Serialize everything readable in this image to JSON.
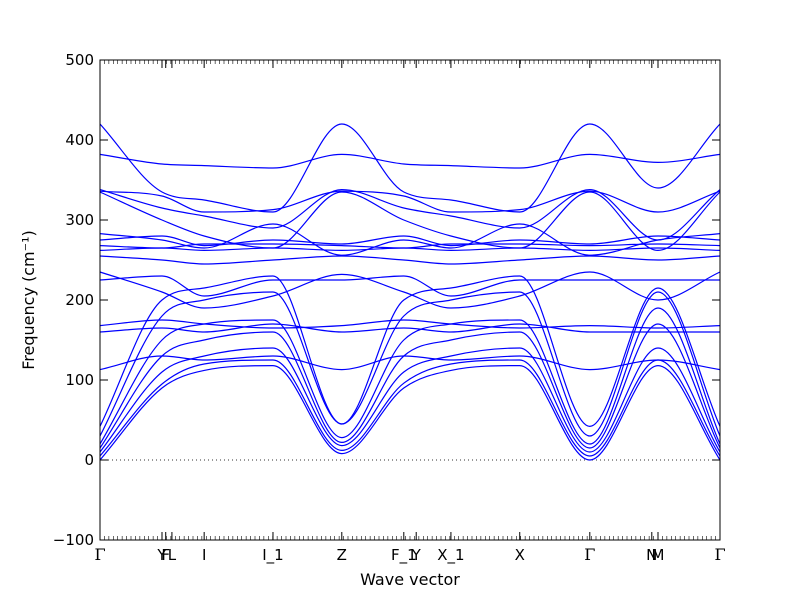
{
  "chart_data": {
    "type": "line",
    "xlabel": "Wave vector",
    "ylabel": "Frequency (cm⁻¹)",
    "ylim": [
      -100,
      500
    ],
    "yticks": [
      -100,
      0,
      100,
      200,
      300,
      400,
      500
    ],
    "grid": false,
    "legend": "none",
    "series_color": "#0000ff",
    "zero_line": {
      "y": 0,
      "style": "dotted",
      "color": "#333333"
    },
    "xlim": [
      0,
      1
    ],
    "high_symmetry_points": [
      {
        "label": "Γ",
        "x": 0.0
      },
      {
        "label": "Y",
        "x": 0.1
      },
      {
        "label": "F",
        "x": 0.106
      },
      {
        "label": "L",
        "x": 0.116
      },
      {
        "label": "I",
        "x": 0.168
      },
      {
        "label": "I_1",
        "x": 0.279
      },
      {
        "label": "Z",
        "x": 0.39
      },
      {
        "label": "F_1",
        "x": 0.49
      },
      {
        "label": "Y",
        "x": 0.51
      },
      {
        "label": "X_1",
        "x": 0.566
      },
      {
        "label": "X",
        "x": 0.677
      },
      {
        "label": "Γ",
        "x": 0.79
      },
      {
        "label": "N",
        "x": 0.89
      },
      {
        "label": "M",
        "x": 0.9
      },
      {
        "label": "Γ",
        "x": 1.0
      }
    ],
    "series": [
      {
        "x": [
          0,
          0.1,
          0.168,
          0.279,
          0.39,
          0.49,
          0.566,
          0.677,
          0.79,
          0.9,
          1.0
        ],
        "y": [
          0,
          90,
          112,
          118,
          8,
          90,
          112,
          118,
          0,
          118,
          0
        ]
      },
      {
        "x": [
          0,
          0.1,
          0.168,
          0.279,
          0.39,
          0.49,
          0.566,
          0.677,
          0.79,
          0.9,
          1.0
        ],
        "y": [
          5,
          95,
          120,
          125,
          12,
          96,
          120,
          125,
          5,
          125,
          5
        ]
      },
      {
        "x": [
          0,
          0.1,
          0.168,
          0.279,
          0.39,
          0.49,
          0.566,
          0.677,
          0.79,
          0.9,
          1.0
        ],
        "y": [
          10,
          110,
          130,
          140,
          18,
          110,
          130,
          140,
          10,
          140,
          10
        ]
      },
      {
        "x": [
          0,
          0.1,
          0.168,
          0.279,
          0.39,
          0.49,
          0.566,
          0.677,
          0.79,
          0.9,
          1.0
        ],
        "y": [
          15,
          130,
          150,
          160,
          22,
          130,
          150,
          160,
          15,
          170,
          15
        ]
      },
      {
        "x": [
          0,
          0.1,
          0.168,
          0.279,
          0.39,
          0.49,
          0.566,
          0.677,
          0.79,
          0.9,
          1.0
        ],
        "y": [
          20,
          150,
          170,
          175,
          28,
          150,
          170,
          175,
          20,
          190,
          20
        ]
      },
      {
        "x": [
          0,
          0.1,
          0.168,
          0.279,
          0.39,
          0.49,
          0.566,
          0.677,
          0.79,
          0.9,
          1.0
        ],
        "y": [
          30,
          180,
          200,
          210,
          45,
          180,
          200,
          210,
          30,
          210,
          30
        ]
      },
      {
        "x": [
          0,
          0.1,
          0.168,
          0.279,
          0.39,
          0.49,
          0.566,
          0.677,
          0.79,
          0.9,
          1.0
        ],
        "y": [
          42,
          200,
          215,
          230,
          45,
          200,
          215,
          230,
          42,
          215,
          42
        ]
      },
      {
        "x": [
          0,
          0.1,
          0.168,
          0.279,
          0.39,
          0.49,
          0.566,
          0.677,
          0.79,
          0.9,
          1.0
        ],
        "y": [
          113,
          130,
          125,
          130,
          113,
          130,
          125,
          130,
          113,
          125,
          113
        ]
      },
      {
        "x": [
          0,
          0.1,
          0.168,
          0.279,
          0.39,
          0.49,
          0.566,
          0.677,
          0.79,
          0.9,
          1.0
        ],
        "y": [
          160,
          165,
          160,
          170,
          160,
          165,
          160,
          170,
          160,
          160,
          160
        ]
      },
      {
        "x": [
          0,
          0.1,
          0.168,
          0.279,
          0.39,
          0.49,
          0.566,
          0.677,
          0.79,
          0.9,
          1.0
        ],
        "y": [
          168,
          175,
          170,
          165,
          168,
          175,
          170,
          165,
          168,
          165,
          168
        ]
      },
      {
        "x": [
          0,
          0.1,
          0.168,
          0.279,
          0.39,
          0.49,
          0.566,
          0.677,
          0.79,
          0.9,
          1.0
        ],
        "y": [
          225,
          230,
          205,
          225,
          225,
          230,
          205,
          225,
          225,
          225,
          225
        ]
      },
      {
        "x": [
          0,
          0.1,
          0.168,
          0.279,
          0.39,
          0.49,
          0.566,
          0.677,
          0.79,
          0.9,
          1.0
        ],
        "y": [
          235,
          210,
          190,
          205,
          232,
          210,
          190,
          205,
          235,
          200,
          235
        ]
      },
      {
        "x": [
          0,
          0.1,
          0.168,
          0.279,
          0.39,
          0.49,
          0.566,
          0.677,
          0.79,
          0.9,
          1.0
        ],
        "y": [
          255,
          250,
          245,
          250,
          255,
          250,
          245,
          250,
          255,
          250,
          255
        ]
      },
      {
        "x": [
          0,
          0.1,
          0.168,
          0.279,
          0.39,
          0.49,
          0.566,
          0.677,
          0.79,
          0.9,
          1.0
        ],
        "y": [
          262,
          265,
          262,
          265,
          262,
          265,
          262,
          265,
          262,
          265,
          262
        ]
      },
      {
        "x": [
          0,
          0.1,
          0.168,
          0.279,
          0.39,
          0.49,
          0.566,
          0.677,
          0.79,
          0.9,
          1.0
        ],
        "y": [
          268,
          265,
          270,
          270,
          268,
          265,
          270,
          270,
          268,
          270,
          268
        ]
      },
      {
        "x": [
          0,
          0.1,
          0.168,
          0.279,
          0.39,
          0.49,
          0.566,
          0.677,
          0.79,
          0.9,
          1.0
        ],
        "y": [
          275,
          280,
          268,
          275,
          270,
          280,
          268,
          275,
          270,
          280,
          275
        ]
      },
      {
        "x": [
          0,
          0.1,
          0.168,
          0.279,
          0.39,
          0.49,
          0.566,
          0.677,
          0.79,
          0.9,
          1.0
        ],
        "y": [
          283,
          275,
          265,
          295,
          256,
          275,
          265,
          295,
          256,
          275,
          283
        ]
      },
      {
        "x": [
          0,
          0.1,
          0.168,
          0.279,
          0.39,
          0.49,
          0.566,
          0.677,
          0.79,
          0.9,
          1.0
        ],
        "y": [
          335,
          300,
          280,
          265,
          335,
          300,
          280,
          265,
          335,
          262,
          335
        ]
      },
      {
        "x": [
          0,
          0.1,
          0.168,
          0.279,
          0.39,
          0.49,
          0.566,
          0.677,
          0.79,
          0.9,
          1.0
        ],
        "y": [
          338,
          315,
          305,
          290,
          338,
          315,
          305,
          290,
          338,
          275,
          338
        ]
      },
      {
        "x": [
          0,
          0.1,
          0.168,
          0.279,
          0.39,
          0.49,
          0.566,
          0.677,
          0.79,
          0.9,
          1.0
        ],
        "y": [
          336,
          330,
          310,
          313,
          336,
          330,
          310,
          313,
          336,
          310,
          336
        ]
      },
      {
        "x": [
          0,
          0.1,
          0.168,
          0.279,
          0.39,
          0.49,
          0.566,
          0.677,
          0.79,
          0.9,
          1.0
        ],
        "y": [
          382,
          370,
          368,
          365,
          382,
          370,
          368,
          365,
          382,
          372,
          382
        ]
      },
      {
        "x": [
          0,
          0.1,
          0.168,
          0.279,
          0.39,
          0.49,
          0.566,
          0.677,
          0.79,
          0.9,
          1.0
        ],
        "y": [
          420,
          335,
          325,
          310,
          420,
          335,
          325,
          310,
          420,
          340,
          420
        ]
      }
    ]
  }
}
